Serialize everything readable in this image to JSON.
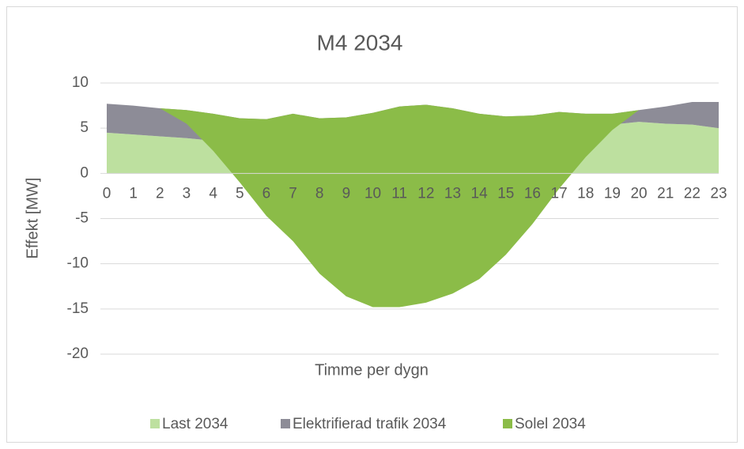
{
  "chart_data": {
    "type": "stacked_area",
    "title": "M4 2034",
    "x_label": "Timme per dygn",
    "y_label": "Effekt [MW]",
    "categories": [
      "0",
      "1",
      "2",
      "3",
      "4",
      "5",
      "6",
      "7",
      "8",
      "9",
      "10",
      "11",
      "12",
      "13",
      "14",
      "15",
      "16",
      "17",
      "18",
      "19",
      "20",
      "21",
      "22",
      "23"
    ],
    "series": [
      {
        "name": "Last 2034",
        "color": "#bde09f",
        "values": [
          4.5,
          4.3,
          4.1,
          3.9,
          3.6,
          3.5,
          3.4,
          3.6,
          3.5,
          3.5,
          3.7,
          4.1,
          4.3,
          4.1,
          3.8,
          3.7,
          3.8,
          4.0,
          4.2,
          5.4,
          5.7,
          5.5,
          5.4,
          5.0
        ]
      },
      {
        "name": "Elektrifierad trafik 2034",
        "color": "#8d8c97",
        "values": [
          3.2,
          3.2,
          3.1,
          3.1,
          3.0,
          2.6,
          2.6,
          3.0,
          2.6,
          2.7,
          3.0,
          3.3,
          3.3,
          3.1,
          2.8,
          2.6,
          2.6,
          2.8,
          2.4,
          1.2,
          1.3,
          1.9,
          2.5,
          2.9
        ]
      },
      {
        "name": "Solel 2034",
        "color": "#8bbc48",
        "values": [
          0,
          0,
          0,
          -1.5,
          -4.1,
          -7.1,
          -10.7,
          -14.1,
          -17.2,
          -19.8,
          -21.5,
          -22.2,
          -21.9,
          -20.5,
          -18.3,
          -15.3,
          -12.0,
          -8.5,
          -4.8,
          -1.8,
          0,
          0,
          0,
          0
        ]
      }
    ],
    "ylim": [
      -20,
      10
    ],
    "yticks": [
      10,
      5,
      0,
      -5,
      -10,
      -15,
      -20
    ],
    "grid": true,
    "legend": "bottom"
  }
}
